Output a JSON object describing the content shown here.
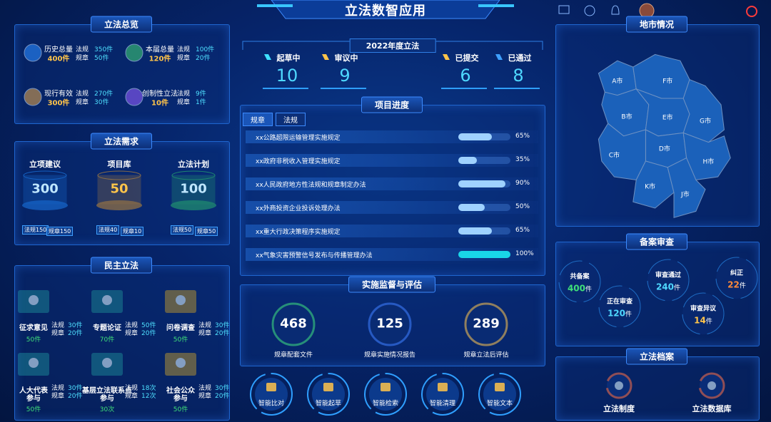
{
  "header": {
    "title": "立法数智应用"
  },
  "overview": {
    "title": "立法总览",
    "items": [
      {
        "name": "历史总量",
        "total": "400件",
        "rows": [
          {
            "label": "法规",
            "value": "350件"
          },
          {
            "label": "规章",
            "value": "50件"
          }
        ]
      },
      {
        "name": "本届总量",
        "total": "120件",
        "rows": [
          {
            "label": "法规",
            "value": "100件"
          },
          {
            "label": "规章",
            "value": "20件"
          }
        ]
      },
      {
        "name": "现行有效",
        "total": "300件",
        "rows": [
          {
            "label": "法规",
            "value": "270件"
          },
          {
            "label": "规章",
            "value": "30件"
          }
        ]
      },
      {
        "name": "创制性立法",
        "total": "10件",
        "rows": [
          {
            "label": "法规",
            "value": "9件"
          },
          {
            "label": "规章",
            "value": "1件"
          }
        ]
      }
    ]
  },
  "demand": {
    "title": "立法需求",
    "items": [
      {
        "name": "立项建议",
        "total": "300",
        "rows": [
          {
            "label": "法规",
            "value": "150"
          },
          {
            "label": "规章",
            "value": "150"
          }
        ]
      },
      {
        "name": "项目库",
        "total": "50",
        "rows": [
          {
            "label": "法规",
            "value": "40"
          },
          {
            "label": "规章",
            "value": "10"
          }
        ]
      },
      {
        "name": "立法计划",
        "total": "100",
        "rows": [
          {
            "label": "法规",
            "value": "50"
          },
          {
            "label": "规章",
            "value": "50"
          }
        ]
      }
    ]
  },
  "democracy": {
    "title": "民主立法",
    "items": [
      {
        "name": "征求意见",
        "total": "50件",
        "rows": [
          {
            "label": "法规",
            "value": "30件"
          },
          {
            "label": "规章",
            "value": "20件"
          }
        ]
      },
      {
        "name": "专题论证",
        "total": "70件",
        "rows": [
          {
            "label": "法规",
            "value": "50件"
          },
          {
            "label": "规章",
            "value": "20件"
          }
        ]
      },
      {
        "name": "问卷调查",
        "total": "50件",
        "rows": [
          {
            "label": "法规",
            "value": "30件"
          },
          {
            "label": "规章",
            "value": "20件"
          }
        ]
      },
      {
        "name": "人大代表参与",
        "total": "50件",
        "rows": [
          {
            "label": "法规",
            "value": "30件"
          },
          {
            "label": "规章",
            "value": "20件"
          }
        ]
      },
      {
        "name": "基层立法联系点参与",
        "total": "30次",
        "rows": [
          {
            "label": "法规",
            "value": "18次"
          },
          {
            "label": "规章",
            "value": "12次"
          }
        ]
      },
      {
        "name": "社会公众参与",
        "total": "50件",
        "rows": [
          {
            "label": "法规",
            "value": "30件"
          },
          {
            "label": "规章",
            "value": "20件"
          }
        ]
      }
    ]
  },
  "annual": {
    "title": "2022年度立法",
    "items": [
      {
        "name": "起草中",
        "value": "10"
      },
      {
        "name": "审议中",
        "value": "9"
      },
      {
        "name": "已提交",
        "value": "6"
      },
      {
        "name": "已通过",
        "value": "8"
      }
    ]
  },
  "progress": {
    "title": "项目进度",
    "tabs": [
      "规章",
      "法规"
    ],
    "rows": [
      {
        "name": "xx公路超限运输管理实施规定",
        "value": 65,
        "label": "65%"
      },
      {
        "name": "xx政府非税收入管理实施规定",
        "value": 35,
        "label": "35%"
      },
      {
        "name": "xx人民政府地方性法规和规章制定办法",
        "value": 90,
        "label": "90%"
      },
      {
        "name": "xx外商投资企业投诉处理办法",
        "value": 50,
        "label": "50%"
      },
      {
        "name": "xx重大行政决策程序实施规定",
        "value": 65,
        "label": "65%"
      },
      {
        "name": "xx气象灾害预警信号发布与传播管理办法",
        "value": 100,
        "label": "100%"
      }
    ]
  },
  "monitor": {
    "title": "实施监督与评估",
    "items": [
      {
        "value": "468",
        "name": "规章配套文件"
      },
      {
        "value": "125",
        "name": "规章实施情况报告"
      },
      {
        "value": "289",
        "name": "规章立法后评估"
      }
    ]
  },
  "tools": [
    "智能比对",
    "智能起草",
    "智能检索",
    "智能清理",
    "智能文本"
  ],
  "map": {
    "title": "地市情况",
    "cities": [
      "A市",
      "F市",
      "B市",
      "E市",
      "G市",
      "D市",
      "C市",
      "H市",
      "K市",
      "J市"
    ]
  },
  "filing": {
    "title": "备案审查",
    "items": [
      {
        "name": "共备案",
        "value": "400",
        "unit": "件"
      },
      {
        "name": "审查通过",
        "value": "240",
        "unit": "件"
      },
      {
        "name": "纠正",
        "value": "22",
        "unit": "件"
      },
      {
        "name": "正在审查",
        "value": "120",
        "unit": "件"
      },
      {
        "name": "审查异议",
        "value": "14",
        "unit": "件"
      }
    ]
  },
  "archive": {
    "title": "立法档案",
    "items": [
      "立法制度",
      "立法数据库"
    ]
  }
}
